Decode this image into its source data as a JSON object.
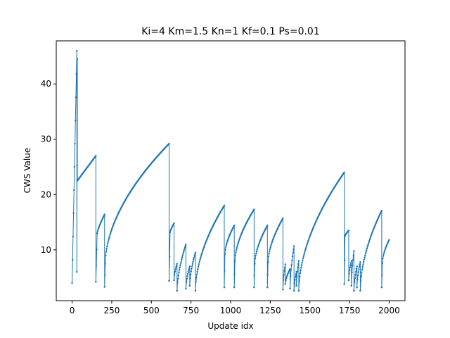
{
  "chart_data": {
    "type": "line",
    "title": "Ki=4 Km=1.5 Kn=1 Kf=0.1 Ps=0.01",
    "xlabel": "Update idx",
    "ylabel": "CWS Value",
    "xlim": [
      -100,
      2100
    ],
    "ylim": [
      0.8,
      47.8
    ],
    "xticks": [
      0,
      250,
      500,
      750,
      1000,
      1250,
      1500,
      1750,
      2000
    ],
    "yticks": [
      10,
      20,
      30,
      40
    ],
    "grid": false,
    "legend": "none",
    "line_color": "#1f77b4",
    "marker": "dot",
    "series": [
      {
        "segments": [
          {
            "type": "ramp",
            "x0": 0,
            "x1": 30,
            "y0": 4.0,
            "y1": 46.0
          },
          {
            "type": "reset",
            "x": 30,
            "y": 6.0
          },
          {
            "type": "ramp",
            "x0": 30,
            "x1": 33,
            "y0": 6.0,
            "y1": 44.5
          },
          {
            "type": "reset",
            "x": 33,
            "y": 22.5
          },
          {
            "type": "curve",
            "x0": 33,
            "x1": 150,
            "y0": 22.5,
            "y1": 27.0,
            "shape": 1.0
          },
          {
            "type": "reset",
            "x": 150,
            "y": 4.2
          },
          {
            "type": "ramp",
            "x0": 150,
            "x1": 158,
            "y0": 4.2,
            "y1": 13.0
          },
          {
            "type": "curve",
            "x0": 158,
            "x1": 205,
            "y0": 13.0,
            "y1": 16.4,
            "shape": 0.8
          },
          {
            "type": "reset",
            "x": 205,
            "y": 3.3
          },
          {
            "type": "ramp",
            "x0": 205,
            "x1": 209,
            "y0": 3.3,
            "y1": 7.5
          },
          {
            "type": "curve",
            "x0": 209,
            "x1": 612,
            "y0": 7.5,
            "y1": 29.2,
            "shape": 0.55
          },
          {
            "type": "reset",
            "x": 612,
            "y": 4.4
          },
          {
            "type": "ramp",
            "x0": 612,
            "x1": 618,
            "y0": 4.4,
            "y1": 13.2
          },
          {
            "type": "curve",
            "x0": 618,
            "x1": 643,
            "y0": 13.2,
            "y1": 14.8,
            "shape": 0.8
          },
          {
            "type": "reset",
            "x": 643,
            "y": 4.5
          },
          {
            "type": "curve",
            "x0": 643,
            "x1": 662,
            "y0": 4.5,
            "y1": 7.5,
            "shape": 0.6
          },
          {
            "type": "reset",
            "x": 662,
            "y": 2.6
          },
          {
            "type": "curve",
            "x0": 662,
            "x1": 718,
            "y0": 2.6,
            "y1": 11.0,
            "shape": 0.6
          },
          {
            "type": "reset",
            "x": 718,
            "y": 3.0
          },
          {
            "type": "curve",
            "x0": 718,
            "x1": 742,
            "y0": 3.0,
            "y1": 7.0,
            "shape": 0.6
          },
          {
            "type": "reset",
            "x": 742,
            "y": 3.5
          },
          {
            "type": "curve",
            "x0": 742,
            "x1": 778,
            "y0": 3.5,
            "y1": 9.5,
            "shape": 0.6
          },
          {
            "type": "reset",
            "x": 778,
            "y": 2.6
          },
          {
            "type": "curve",
            "x0": 778,
            "x1": 960,
            "y0": 2.6,
            "y1": 18.0,
            "shape": 0.55
          },
          {
            "type": "reset",
            "x": 960,
            "y": 3.2
          },
          {
            "type": "ramp",
            "x0": 960,
            "x1": 964,
            "y0": 3.2,
            "y1": 9.2
          },
          {
            "type": "curve",
            "x0": 964,
            "x1": 1023,
            "y0": 9.2,
            "y1": 14.4,
            "shape": 0.6
          },
          {
            "type": "reset",
            "x": 1023,
            "y": 3.2
          },
          {
            "type": "ramp",
            "x0": 1023,
            "x1": 1027,
            "y0": 3.2,
            "y1": 8.0
          },
          {
            "type": "curve",
            "x0": 1027,
            "x1": 1148,
            "y0": 8.0,
            "y1": 17.3,
            "shape": 0.6
          },
          {
            "type": "reset",
            "x": 1148,
            "y": 3.2
          },
          {
            "type": "ramp",
            "x0": 1148,
            "x1": 1152,
            "y0": 3.2,
            "y1": 7.5
          },
          {
            "type": "curve",
            "x0": 1152,
            "x1": 1232,
            "y0": 7.5,
            "y1": 14.4,
            "shape": 0.6
          },
          {
            "type": "reset",
            "x": 1232,
            "y": 3.2
          },
          {
            "type": "ramp",
            "x0": 1232,
            "x1": 1236,
            "y0": 3.2,
            "y1": 7.8
          },
          {
            "type": "curve",
            "x0": 1236,
            "x1": 1330,
            "y0": 7.8,
            "y1": 15.7,
            "shape": 0.6
          },
          {
            "type": "reset",
            "x": 1330,
            "y": 2.8
          },
          {
            "type": "curve",
            "x0": 1330,
            "x1": 1345,
            "y0": 2.8,
            "y1": 7.4,
            "shape": 0.6
          },
          {
            "type": "reset",
            "x": 1345,
            "y": 3.8
          },
          {
            "type": "curve",
            "x0": 1345,
            "x1": 1375,
            "y0": 3.8,
            "y1": 6.5,
            "shape": 0.6
          },
          {
            "type": "reset",
            "x": 1375,
            "y": 3.0
          },
          {
            "type": "curve",
            "x0": 1375,
            "x1": 1400,
            "y0": 3.0,
            "y1": 10.7,
            "shape": 0.6
          },
          {
            "type": "reset",
            "x": 1400,
            "y": 2.6
          },
          {
            "type": "curve",
            "x0": 1400,
            "x1": 1415,
            "y0": 2.6,
            "y1": 6.0,
            "shape": 0.6
          },
          {
            "type": "reset",
            "x": 1415,
            "y": 3.5
          },
          {
            "type": "curve",
            "x0": 1415,
            "x1": 1430,
            "y0": 3.5,
            "y1": 8.0,
            "shape": 0.6
          },
          {
            "type": "reset",
            "x": 1430,
            "y": 2.6
          },
          {
            "type": "curve",
            "x0": 1430,
            "x1": 1717,
            "y0": 2.6,
            "y1": 24.0,
            "shape": 0.55
          },
          {
            "type": "reset",
            "x": 1717,
            "y": 3.8
          },
          {
            "type": "ramp",
            "x0": 1717,
            "x1": 1721,
            "y0": 3.8,
            "y1": 12.5
          },
          {
            "type": "curve",
            "x0": 1721,
            "x1": 1745,
            "y0": 12.5,
            "y1": 13.5,
            "shape": 0.8
          },
          {
            "type": "reset",
            "x": 1745,
            "y": 4.5
          },
          {
            "type": "curve",
            "x0": 1745,
            "x1": 1762,
            "y0": 4.5,
            "y1": 8.0,
            "shape": 0.6
          },
          {
            "type": "reset",
            "x": 1762,
            "y": 3.5
          },
          {
            "type": "curve",
            "x0": 1762,
            "x1": 1778,
            "y0": 3.5,
            "y1": 9.8,
            "shape": 0.6
          },
          {
            "type": "reset",
            "x": 1778,
            "y": 2.6
          },
          {
            "type": "curve",
            "x0": 1778,
            "x1": 1797,
            "y0": 2.6,
            "y1": 7.0,
            "shape": 0.6
          },
          {
            "type": "reset",
            "x": 1797,
            "y": 3.2
          },
          {
            "type": "curve",
            "x0": 1797,
            "x1": 1818,
            "y0": 3.2,
            "y1": 7.8,
            "shape": 0.6
          },
          {
            "type": "reset",
            "x": 1818,
            "y": 2.6
          },
          {
            "type": "curve",
            "x0": 1818,
            "x1": 1953,
            "y0": 2.6,
            "y1": 17.1,
            "shape": 0.55
          },
          {
            "type": "reset",
            "x": 1953,
            "y": 3.2
          },
          {
            "type": "ramp",
            "x0": 1953,
            "x1": 1957,
            "y0": 3.2,
            "y1": 7.6
          },
          {
            "type": "curve",
            "x0": 1957,
            "x1": 2000,
            "y0": 7.6,
            "y1": 11.8,
            "shape": 0.6
          }
        ]
      }
    ]
  }
}
